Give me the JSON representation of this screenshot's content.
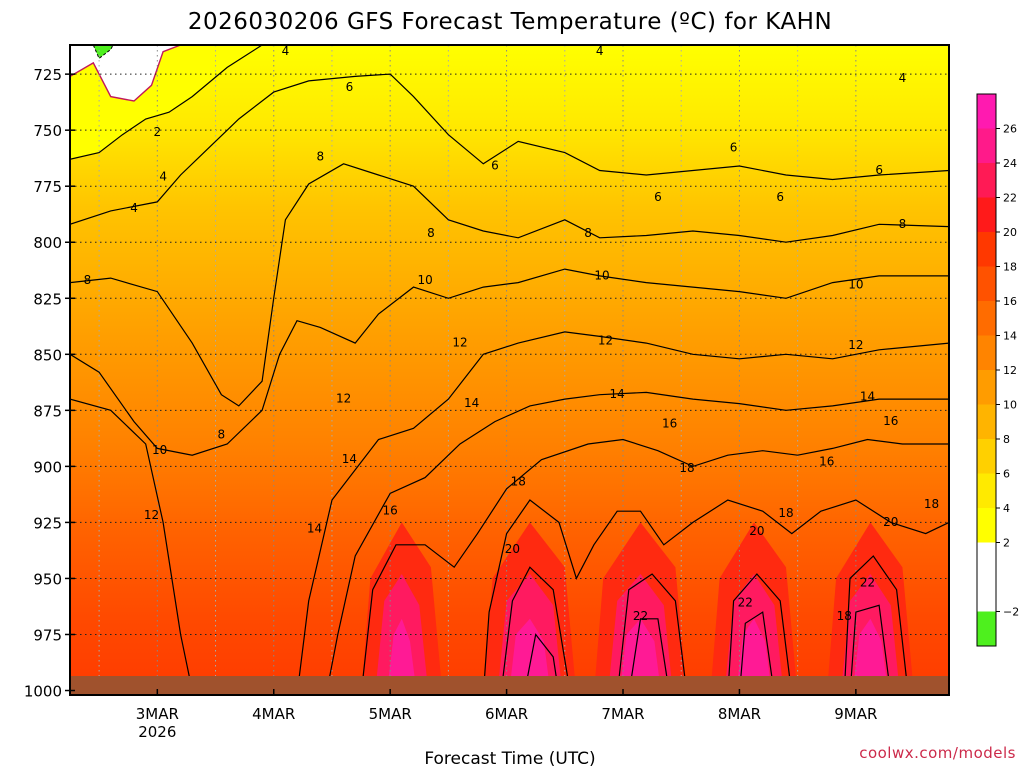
{
  "chart_data": {
    "type": "contour",
    "title": "2026030206 GFS Forecast Temperature (ºC) for KAHN",
    "xlabel": "Forecast Time (UTC)",
    "ylabel": "",
    "x_ticks": [
      {
        "day": 3,
        "label": "3MAR",
        "sub": "2026"
      },
      {
        "day": 4,
        "label": "4MAR",
        "sub": ""
      },
      {
        "day": 5,
        "label": "5MAR",
        "sub": ""
      },
      {
        "day": 6,
        "label": "6MAR",
        "sub": ""
      },
      {
        "day": 7,
        "label": "7MAR",
        "sub": ""
      },
      {
        "day": 8,
        "label": "8MAR",
        "sub": ""
      },
      {
        "day": 9,
        "label": "9MAR",
        "sub": ""
      }
    ],
    "xlim": [
      2.25,
      9.8
    ],
    "ylim": [
      1002,
      712
    ],
    "y_ticks": [
      725,
      750,
      775,
      800,
      825,
      850,
      875,
      900,
      925,
      950,
      975,
      1000
    ],
    "y_tick_labels": [
      "725",
      "750",
      "775",
      "800",
      "825",
      "850",
      "875",
      "900",
      "925",
      "950",
      "975",
      "1000"
    ],
    "colorbar": {
      "levels": [
        -4,
        -2,
        0,
        2,
        4,
        6,
        8,
        10,
        12,
        14,
        16,
        18,
        20,
        22,
        24,
        26,
        28
      ],
      "colors": [
        "#4ef01e",
        "#ffffff",
        "#ffffff",
        "#ffff00",
        "#ffea00",
        "#ffd000",
        "#ffb400",
        "#ff9c00",
        "#ff8400",
        "#ff6c00",
        "#ff5200",
        "#ff3800",
        "#ff1a1a",
        "#ff1a55",
        "#ff1a8a",
        "#ff1ab0"
      ],
      "labels": [
        "−2",
        "2",
        "4",
        "6",
        "8",
        "10",
        "12",
        "14",
        "16",
        "18",
        "20",
        "22",
        "24",
        "26"
      ],
      "label_values": [
        -2,
        2,
        4,
        6,
        8,
        10,
        12,
        14,
        16,
        18,
        20,
        22,
        24,
        26
      ]
    },
    "isotherms": [
      {
        "value": 4,
        "points": [
          [
            2.25,
            763
          ],
          [
            2.5,
            760
          ],
          [
            2.7,
            752
          ],
          [
            2.9,
            745
          ],
          [
            3.1,
            742
          ],
          [
            3.3,
            735
          ],
          [
            3.6,
            722
          ],
          [
            3.9,
            712
          ]
        ]
      },
      {
        "value": 6,
        "points": [
          [
            2.25,
            792
          ],
          [
            2.6,
            786
          ],
          [
            3.0,
            782
          ],
          [
            3.2,
            770
          ],
          [
            3.4,
            760
          ],
          [
            3.7,
            745
          ],
          [
            4.0,
            733
          ],
          [
            4.3,
            728
          ],
          [
            4.7,
            726
          ],
          [
            5.0,
            725
          ],
          [
            5.2,
            735
          ],
          [
            5.5,
            752
          ],
          [
            5.8,
            765
          ],
          [
            6.1,
            755
          ],
          [
            6.5,
            760
          ],
          [
            6.8,
            768
          ],
          [
            7.2,
            770
          ],
          [
            7.6,
            768
          ],
          [
            8.0,
            766
          ],
          [
            8.4,
            770
          ],
          [
            8.8,
            772
          ],
          [
            9.2,
            770
          ],
          [
            9.8,
            768
          ]
        ]
      },
      {
        "value": 8,
        "points": [
          [
            2.25,
            818
          ],
          [
            2.6,
            816
          ],
          [
            3.0,
            822
          ],
          [
            3.3,
            845
          ],
          [
            3.55,
            868
          ],
          [
            3.7,
            873
          ],
          [
            3.9,
            862
          ],
          [
            4.0,
            825
          ],
          [
            4.1,
            790
          ],
          [
            4.3,
            774
          ],
          [
            4.6,
            765
          ],
          [
            4.9,
            770
          ],
          [
            5.2,
            775
          ],
          [
            5.5,
            790
          ],
          [
            5.8,
            795
          ],
          [
            6.1,
            798
          ],
          [
            6.5,
            790
          ],
          [
            6.8,
            798
          ],
          [
            7.2,
            797
          ],
          [
            7.6,
            795
          ],
          [
            8.0,
            797
          ],
          [
            8.4,
            800
          ],
          [
            8.8,
            797
          ],
          [
            9.2,
            792
          ],
          [
            9.8,
            793
          ]
        ]
      },
      {
        "value": 10,
        "points": [
          [
            2.25,
            850
          ],
          [
            2.5,
            858
          ],
          [
            2.8,
            880
          ],
          [
            3.0,
            892
          ],
          [
            3.3,
            895
          ],
          [
            3.6,
            890
          ],
          [
            3.9,
            875
          ],
          [
            4.05,
            850
          ],
          [
            4.2,
            835
          ],
          [
            4.4,
            838
          ],
          [
            4.7,
            845
          ],
          [
            4.9,
            832
          ],
          [
            5.2,
            820
          ],
          [
            5.5,
            825
          ],
          [
            5.8,
            820
          ],
          [
            6.1,
            818
          ],
          [
            6.5,
            812
          ],
          [
            6.8,
            815
          ],
          [
            7.2,
            818
          ],
          [
            7.6,
            820
          ],
          [
            8.0,
            822
          ],
          [
            8.4,
            825
          ],
          [
            8.8,
            818
          ],
          [
            9.2,
            815
          ],
          [
            9.8,
            815
          ]
        ]
      },
      {
        "value": 12,
        "points": [
          [
            2.25,
            870
          ],
          [
            2.6,
            875
          ],
          [
            2.9,
            890
          ],
          [
            3.05,
            925
          ],
          [
            3.2,
            975
          ],
          [
            3.3,
            1000
          ]
        ]
      },
      {
        "value": 12,
        "points": [
          [
            4.2,
            1002
          ],
          [
            4.3,
            960
          ],
          [
            4.5,
            915
          ],
          [
            4.9,
            888
          ],
          [
            5.2,
            883
          ],
          [
            5.5,
            870
          ],
          [
            5.8,
            850
          ],
          [
            6.1,
            845
          ],
          [
            6.5,
            840
          ],
          [
            6.8,
            842
          ],
          [
            7.2,
            845
          ],
          [
            7.6,
            850
          ],
          [
            8.0,
            852
          ],
          [
            8.4,
            850
          ],
          [
            8.8,
            852
          ],
          [
            9.2,
            848
          ],
          [
            9.8,
            845
          ]
        ]
      },
      {
        "value": 14,
        "points": [
          [
            4.45,
            1002
          ],
          [
            4.55,
            975
          ],
          [
            4.7,
            940
          ],
          [
            5.0,
            912
          ],
          [
            5.3,
            905
          ],
          [
            5.6,
            890
          ],
          [
            5.9,
            880
          ],
          [
            6.2,
            873
          ],
          [
            6.5,
            870
          ],
          [
            6.8,
            868
          ],
          [
            7.2,
            867
          ],
          [
            7.6,
            870
          ],
          [
            8.0,
            872
          ],
          [
            8.4,
            875
          ],
          [
            8.8,
            873
          ],
          [
            9.2,
            870
          ],
          [
            9.8,
            870
          ]
        ]
      },
      {
        "value": 16,
        "points": [
          [
            4.75,
            1002
          ],
          [
            4.85,
            955
          ],
          [
            5.05,
            935
          ],
          [
            5.3,
            935
          ],
          [
            5.55,
            945
          ],
          [
            5.75,
            930
          ],
          [
            6.0,
            910
          ],
          [
            6.3,
            897
          ],
          [
            6.7,
            890
          ],
          [
            7.0,
            888
          ],
          [
            7.3,
            893
          ],
          [
            7.6,
            900
          ],
          [
            7.9,
            895
          ],
          [
            8.2,
            893
          ],
          [
            8.5,
            895
          ],
          [
            8.8,
            892
          ],
          [
            9.1,
            888
          ],
          [
            9.4,
            890
          ],
          [
            9.8,
            890
          ]
        ]
      },
      {
        "value": 18,
        "points": [
          [
            5.8,
            1002
          ],
          [
            5.85,
            965
          ],
          [
            6.0,
            930
          ],
          [
            6.2,
            915
          ],
          [
            6.45,
            925
          ],
          [
            6.6,
            950
          ],
          [
            6.75,
            935
          ],
          [
            6.95,
            920
          ],
          [
            7.15,
            920
          ],
          [
            7.35,
            935
          ],
          [
            7.6,
            925
          ],
          [
            7.9,
            915
          ],
          [
            8.2,
            920
          ],
          [
            8.45,
            930
          ],
          [
            8.7,
            920
          ],
          [
            9.0,
            915
          ],
          [
            9.3,
            925
          ],
          [
            9.6,
            930
          ],
          [
            9.8,
            925
          ]
        ]
      },
      {
        "value": 20,
        "points": [
          [
            5.95,
            1002
          ],
          [
            6.05,
            960
          ],
          [
            6.2,
            945
          ],
          [
            6.4,
            955
          ],
          [
            6.55,
            1002
          ]
        ]
      },
      {
        "value": 20,
        "points": [
          [
            6.95,
            1002
          ],
          [
            7.05,
            955
          ],
          [
            7.25,
            948
          ],
          [
            7.45,
            960
          ],
          [
            7.55,
            1002
          ]
        ]
      },
      {
        "value": 20,
        "points": [
          [
            7.9,
            1002
          ],
          [
            7.95,
            960
          ],
          [
            8.15,
            948
          ],
          [
            8.35,
            960
          ],
          [
            8.45,
            1002
          ]
        ]
      },
      {
        "value": 20,
        "points": [
          [
            8.9,
            1002
          ],
          [
            8.95,
            950
          ],
          [
            9.15,
            940
          ],
          [
            9.35,
            955
          ],
          [
            9.45,
            1002
          ]
        ]
      },
      {
        "value": 22,
        "points": [
          [
            6.15,
            1002
          ],
          [
            6.25,
            975
          ],
          [
            6.4,
            985
          ],
          [
            6.45,
            1002
          ]
        ]
      },
      {
        "value": 22,
        "points": [
          [
            7.05,
            1002
          ],
          [
            7.15,
            968
          ],
          [
            7.3,
            968
          ],
          [
            7.4,
            1002
          ]
        ]
      },
      {
        "value": 22,
        "points": [
          [
            8.0,
            1002
          ],
          [
            8.05,
            970
          ],
          [
            8.2,
            965
          ],
          [
            8.3,
            1002
          ]
        ]
      },
      {
        "value": 22,
        "points": [
          [
            8.95,
            1002
          ],
          [
            9.0,
            965
          ],
          [
            9.2,
            962
          ],
          [
            9.3,
            1002
          ]
        ]
      }
    ],
    "contour_labels": [
      {
        "text": "2",
        "x": 3.0,
        "y": 751
      },
      {
        "text": "4",
        "x": 2.8,
        "y": 785
      },
      {
        "text": "4",
        "x": 3.05,
        "y": 771
      },
      {
        "text": "4",
        "x": 4.1,
        "y": 715
      },
      {
        "text": "4",
        "x": 6.8,
        "y": 715
      },
      {
        "text": "4",
        "x": 9.4,
        "y": 727
      },
      {
        "text": "6",
        "x": 4.65,
        "y": 731
      },
      {
        "text": "6",
        "x": 5.9,
        "y": 766
      },
      {
        "text": "6",
        "x": 7.3,
        "y": 780
      },
      {
        "text": "6",
        "x": 7.95,
        "y": 758
      },
      {
        "text": "6",
        "x": 8.35,
        "y": 780
      },
      {
        "text": "6",
        "x": 9.2,
        "y": 768
      },
      {
        "text": "8",
        "x": 2.4,
        "y": 817
      },
      {
        "text": "8",
        "x": 3.55,
        "y": 886
      },
      {
        "text": "8",
        "x": 4.4,
        "y": 762
      },
      {
        "text": "8",
        "x": 5.35,
        "y": 796
      },
      {
        "text": "8",
        "x": 6.7,
        "y": 796
      },
      {
        "text": "8",
        "x": 9.4,
        "y": 792
      },
      {
        "text": "10",
        "x": 3.02,
        "y": 893
      },
      {
        "text": "10",
        "x": 5.3,
        "y": 817
      },
      {
        "text": "10",
        "x": 6.82,
        "y": 815
      },
      {
        "text": "10",
        "x": 9.0,
        "y": 819
      },
      {
        "text": "12",
        "x": 2.95,
        "y": 922
      },
      {
        "text": "12",
        "x": 4.6,
        "y": 870
      },
      {
        "text": "12",
        "x": 5.6,
        "y": 845
      },
      {
        "text": "12",
        "x": 6.85,
        "y": 844
      },
      {
        "text": "12",
        "x": 9.0,
        "y": 846
      },
      {
        "text": "14",
        "x": 4.35,
        "y": 928
      },
      {
        "text": "14",
        "x": 4.65,
        "y": 897
      },
      {
        "text": "14",
        "x": 5.7,
        "y": 872
      },
      {
        "text": "14",
        "x": 6.95,
        "y": 868
      },
      {
        "text": "14",
        "x": 9.1,
        "y": 869
      },
      {
        "text": "16",
        "x": 5.0,
        "y": 920
      },
      {
        "text": "16",
        "x": 7.4,
        "y": 881
      },
      {
        "text": "16",
        "x": 8.75,
        "y": 898
      },
      {
        "text": "16",
        "x": 9.3,
        "y": 880
      },
      {
        "text": "18",
        "x": 6.1,
        "y": 907
      },
      {
        "text": "18",
        "x": 7.55,
        "y": 901
      },
      {
        "text": "18",
        "x": 8.4,
        "y": 921
      },
      {
        "text": "18",
        "x": 9.65,
        "y": 917
      },
      {
        "text": "18",
        "x": 8.9,
        "y": 967
      },
      {
        "text": "20",
        "x": 6.05,
        "y": 937
      },
      {
        "text": "20",
        "x": 8.15,
        "y": 929
      },
      {
        "text": "20",
        "x": 9.3,
        "y": 925
      },
      {
        "text": "22",
        "x": 7.15,
        "y": 967
      },
      {
        "text": "22",
        "x": 8.05,
        "y": 961
      },
      {
        "text": "22",
        "x": 9.1,
        "y": 952
      }
    ]
  },
  "credit": "coolwx.com/models"
}
